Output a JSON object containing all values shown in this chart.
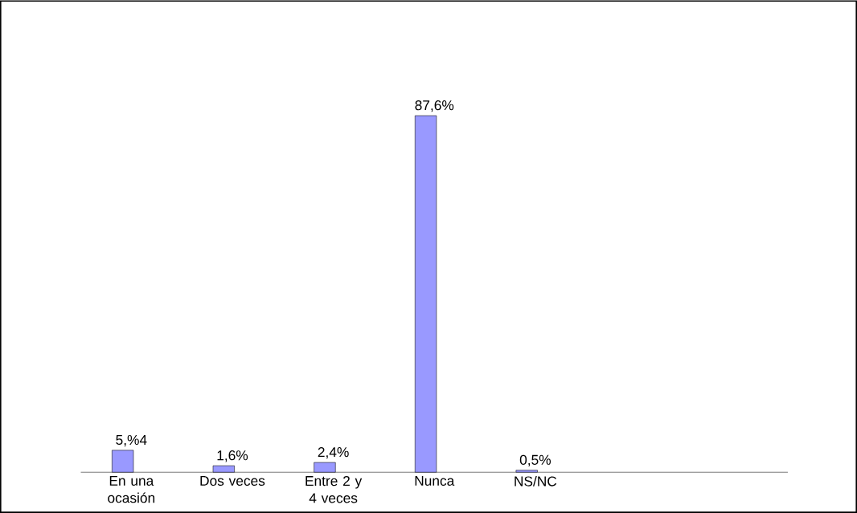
{
  "chart_data": {
    "type": "bar",
    "categories": [
      "En una ocasión",
      "Dos veces",
      "Entre 2 y 4 veces",
      "Nunca",
      "NS/NC",
      null,
      null
    ],
    "values": [
      5.4,
      1.6,
      2.4,
      87.6,
      0.5,
      null,
      null
    ],
    "value_labels": [
      "5,%4",
      "1,6%",
      "2,4%",
      "87,6%",
      "0,5%",
      null,
      null
    ],
    "color": "#9999ff"
  }
}
